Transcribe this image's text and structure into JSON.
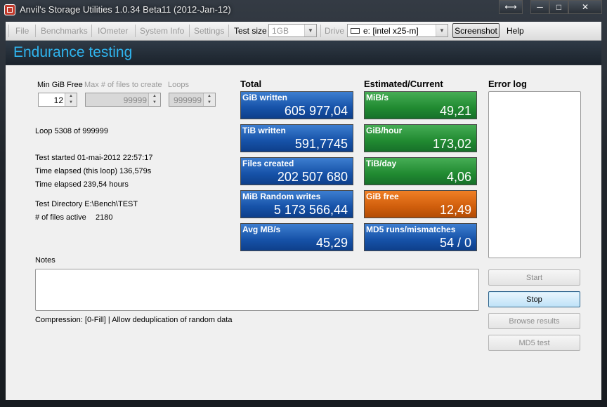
{
  "window": {
    "title": "Anvil's Storage Utilities 1.0.34 Beta11 (2012-Jan-12)",
    "controls": {
      "restore": "⟷",
      "minimize": "─",
      "maximize": "□",
      "close": "✕"
    }
  },
  "menu": {
    "file": "File",
    "benchmarks": "Benchmarks",
    "iometer": "IOmeter",
    "system_info": "System Info",
    "settings": "Settings",
    "test_size_label": "Test size",
    "test_size_value": "1GB",
    "drive_label": "Drive",
    "drive_value": "e: [intel x25-m]",
    "screenshot": "Screenshot",
    "help": "Help"
  },
  "header": {
    "title": "Endurance testing"
  },
  "params": {
    "min_gib_free_label": "Min GiB Free",
    "min_gib_free_value": "12",
    "max_files_label": "Max # of files to create",
    "max_files_value": "99999",
    "loops_label": "Loops",
    "loops_value": "999999"
  },
  "status": {
    "loop": "Loop 5308 of 999999",
    "test_started": "Test started 01-mai-2012 22:57:17",
    "elapsed_loop": "Time elapsed (this loop) 136,579s",
    "elapsed_total": "Time elapsed 239,54 hours",
    "test_directory": "Test Directory E:\\Bench\\TEST",
    "files_active_label": "# of files active",
    "files_active_value": "2180"
  },
  "total": {
    "heading": "Total",
    "tiles": [
      {
        "label": "GiB written",
        "value": "605 977,04"
      },
      {
        "label": "TiB written",
        "value": "591,7745"
      },
      {
        "label": "Files created",
        "value": "202 507 680"
      },
      {
        "label": "MiB Random writes",
        "value": "5 173 566,44"
      },
      {
        "label": "Avg MB/s",
        "value": "45,29"
      }
    ]
  },
  "estimated": {
    "heading": "Estimated/Current",
    "tiles": [
      {
        "label": "MiB/s",
        "value": "49,21"
      },
      {
        "label": "GiB/hour",
        "value": "173,02"
      },
      {
        "label": "TiB/day",
        "value": "4,06"
      },
      {
        "label": "GiB free",
        "value": "12,49"
      },
      {
        "label": "MD5 runs/mismatches",
        "value": "54 / 0"
      }
    ]
  },
  "error_log": {
    "heading": "Error log"
  },
  "notes": {
    "label": "Notes",
    "compression": "Compression: [0-Fill] | Allow deduplication of random data"
  },
  "buttons": {
    "start": "Start",
    "stop": "Stop",
    "browse": "Browse results",
    "md5": "MD5 test"
  },
  "colors": {
    "accent": "#2fb4ee",
    "tile_blue": "#1652a8",
    "tile_green": "#218a31",
    "tile_orange": "#d05e0c"
  }
}
